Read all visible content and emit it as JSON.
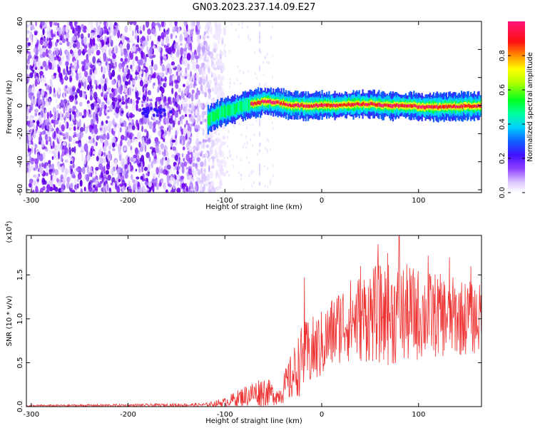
{
  "title": "GN03.2023.237.14.09.E27",
  "colors": {
    "snr_line": "#ee3333",
    "colormap": [
      "#ffffff",
      "#e8d8ff",
      "#b080ff",
      "#7a00ff",
      "#3030ff",
      "#00c8ff",
      "#00ffa0",
      "#00ff00",
      "#c8ff00",
      "#ffff00",
      "#ff8000",
      "#ff0000",
      "#ff1478"
    ]
  },
  "chart_data": [
    {
      "type": "heatmap",
      "xlabel": "Height of straight line (km)",
      "ylabel": "Frequency (Hz)",
      "xlim": [
        -305,
        165
      ],
      "ylim": [
        -62,
        60
      ],
      "x_ticks": [
        -300,
        -200,
        -100,
        0,
        100
      ],
      "y_ticks": [
        -60,
        -40,
        -20,
        0,
        20,
        40,
        60
      ],
      "x_tick_labels": [
        "-300",
        "-200",
        "-100",
        "0",
        "100"
      ],
      "y_tick_labels": [
        "-60",
        "-40",
        "-20",
        "0",
        "20",
        "40",
        "60"
      ],
      "noise_region": {
        "x_end": -110,
        "note_density": "high"
      },
      "ridge": [
        {
          "x": -118,
          "f": -10
        },
        {
          "x": -105,
          "f": -5
        },
        {
          "x": -90,
          "f": -2
        },
        {
          "x": -75,
          "f": 1
        },
        {
          "x": -60,
          "f": 3
        },
        {
          "x": -45,
          "f": 2
        },
        {
          "x": -30,
          "f": 0
        },
        {
          "x": -10,
          "f": 0
        },
        {
          "x": 0,
          "f": 0
        },
        {
          "x": 20,
          "f": 0
        },
        {
          "x": 30,
          "f": 1
        },
        {
          "x": 50,
          "f": 1
        },
        {
          "x": 70,
          "f": 0
        },
        {
          "x": 90,
          "f": 0
        },
        {
          "x": 100,
          "f": -1
        },
        {
          "x": 130,
          "f": -1
        },
        {
          "x": 165,
          "f": 0
        }
      ],
      "colorbar": {
        "label": "Normalized spectral amplitude",
        "range": [
          0,
          1
        ],
        "ticks": [
          0.0,
          0.2,
          0.4,
          0.6,
          0.8
        ],
        "tick_labels": [
          "0.0",
          "0.2",
          "0.4",
          "0.6",
          "0.8"
        ]
      }
    },
    {
      "type": "line",
      "xlabel": "Height of straight line (km)",
      "ylabel": "SNR (10 * v/v)",
      "y_multiplier": "(x10",
      "y_multiplier_exp": "4",
      "y_multiplier_close": ")",
      "xlim": [
        -305,
        165
      ],
      "ylim": [
        0,
        1.95
      ],
      "x_ticks": [
        -300,
        -200,
        -100,
        0,
        100
      ],
      "y_ticks": [
        0.0,
        0.5,
        1.0,
        1.5
      ],
      "x_tick_labels": [
        "-300",
        "-200",
        "-100",
        "0",
        "100"
      ],
      "y_tick_labels": [
        "0.0",
        "0.5",
        "1.0",
        "1.5"
      ],
      "series": [
        {
          "envelope": [
            {
              "x": -305,
              "mean": 0.01,
              "amp": 0.01
            },
            {
              "x": -200,
              "mean": 0.015,
              "amp": 0.015
            },
            {
              "x": -120,
              "mean": 0.02,
              "amp": 0.02
            },
            {
              "x": -100,
              "mean": 0.05,
              "amp": 0.05
            },
            {
              "x": -80,
              "mean": 0.12,
              "amp": 0.12
            },
            {
              "x": -60,
              "mean": 0.18,
              "amp": 0.18
            },
            {
              "x": -45,
              "mean": 0.12,
              "amp": 0.1
            },
            {
              "x": -30,
              "mean": 0.35,
              "amp": 0.3
            },
            {
              "x": -20,
              "mean": 0.55,
              "amp": 0.4
            },
            {
              "x": 0,
              "mean": 0.7,
              "amp": 0.4
            },
            {
              "x": 20,
              "mean": 0.95,
              "amp": 0.45
            },
            {
              "x": 50,
              "mean": 1.05,
              "amp": 0.55
            },
            {
              "x": 80,
              "mean": 1.05,
              "amp": 0.6
            },
            {
              "x": 110,
              "mean": 1.05,
              "amp": 0.5
            },
            {
              "x": 140,
              "mean": 1.02,
              "amp": 0.45
            },
            {
              "x": 165,
              "mean": 1.0,
              "amp": 0.4
            }
          ],
          "spikes": [
            {
              "x": -18,
              "y": 1.47
            },
            {
              "x": 58,
              "y": 1.85
            },
            {
              "x": 80,
              "y": 1.95
            },
            {
              "x": 68,
              "y": 1.75
            },
            {
              "x": 110,
              "y": 1.72
            },
            {
              "x": 132,
              "y": 1.7
            },
            {
              "x": 40,
              "y": 1.6
            },
            {
              "x": 154,
              "y": 1.6
            }
          ]
        }
      ]
    }
  ]
}
